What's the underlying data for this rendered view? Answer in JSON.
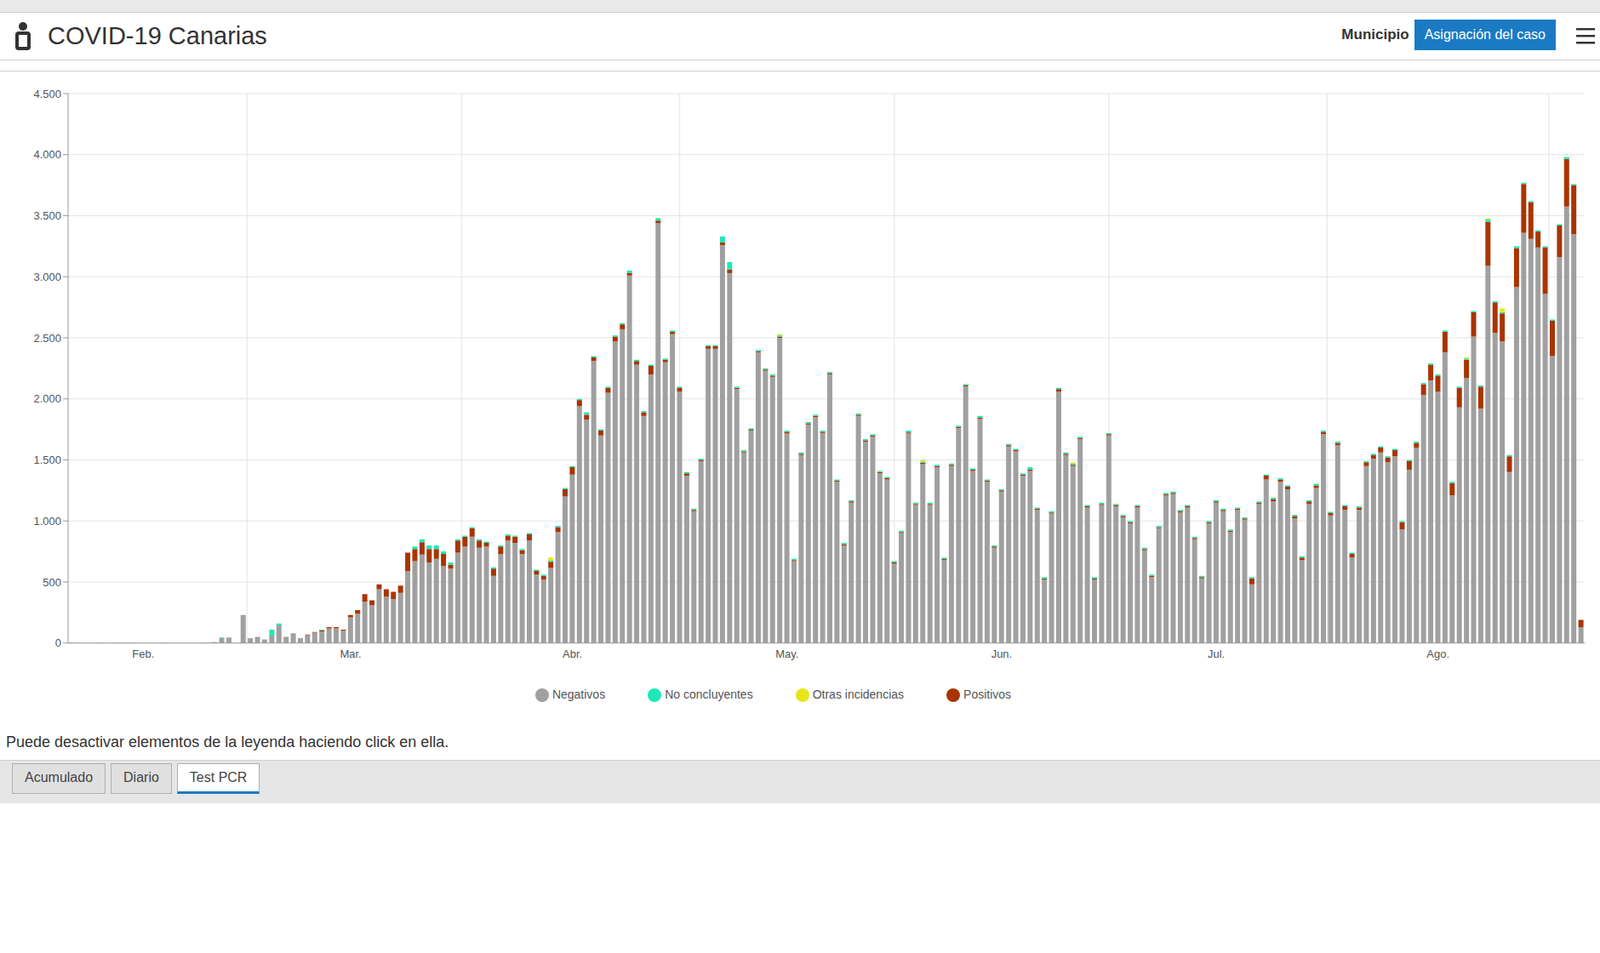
{
  "header": {
    "title": "COVID-19 Canarias",
    "link": "Municipio",
    "button": "Asignación del caso"
  },
  "note": "Puede desactivar elementos de la leyenda haciendo click en ella.",
  "tabs": [
    {
      "label": "Acumulado"
    },
    {
      "label": "Diario"
    },
    {
      "label": "Test PCR",
      "selected": true
    }
  ],
  "chart_data": {
    "type": "bar",
    "stacked": true,
    "grid": true,
    "legend": "bottom",
    "categories": [
      null,
      null,
      null,
      null,
      null,
      null,
      null,
      null,
      null,
      null,
      "Feb.",
      null,
      null,
      null,
      null,
      null,
      null,
      null,
      null,
      null,
      null,
      null,
      null,
      null,
      null,
      null,
      null,
      null,
      null,
      null,
      null,
      null,
      null,
      null,
      null,
      null,
      null,
      null,
      null,
      "Mar.",
      null,
      null,
      null,
      null,
      null,
      null,
      null,
      null,
      null,
      null,
      null,
      null,
      null,
      null,
      null,
      null,
      null,
      null,
      null,
      null,
      null,
      null,
      null,
      null,
      null,
      null,
      null,
      null,
      null,
      null,
      "Abr.",
      null,
      null,
      null,
      null,
      null,
      null,
      null,
      null,
      null,
      null,
      null,
      null,
      null,
      null,
      null,
      null,
      null,
      null,
      null,
      null,
      null,
      null,
      null,
      null,
      null,
      null,
      null,
      null,
      null,
      "May.",
      null,
      null,
      null,
      null,
      null,
      null,
      null,
      null,
      null,
      null,
      null,
      null,
      null,
      null,
      null,
      null,
      null,
      null,
      null,
      null,
      null,
      null,
      null,
      null,
      null,
      null,
      null,
      null,
      null,
      "Jun.",
      null,
      null,
      null,
      null,
      null,
      null,
      null,
      null,
      null,
      null,
      null,
      null,
      null,
      null,
      null,
      null,
      null,
      null,
      null,
      null,
      null,
      null,
      null,
      null,
      null,
      null,
      null,
      null,
      null,
      "Jul.",
      null,
      null,
      null,
      null,
      null,
      null,
      null,
      null,
      null,
      null,
      null,
      null,
      null,
      null,
      null,
      null,
      null,
      null,
      null,
      null,
      null,
      null,
      null,
      null,
      null,
      null,
      null,
      null,
      null,
      null,
      "Ago.",
      null,
      null,
      null,
      null,
      null,
      null,
      null,
      null,
      null,
      null,
      null,
      null,
      null,
      null,
      null,
      null,
      null,
      null,
      null,
      null
    ],
    "ylim": [
      0,
      4500
    ],
    "yticks": [
      0,
      500,
      {
        "value": 1000,
        "label": "1.000"
      },
      {
        "value": 1500,
        "label": "1.500"
      },
      {
        "value": 2000,
        "label": "2.000"
      },
      {
        "value": 2500,
        "label": "2.500"
      },
      {
        "value": 3000,
        "label": "3.000"
      },
      {
        "value": 3500,
        "label": "3.500"
      },
      {
        "value": 4000,
        "label": "4.000"
      },
      {
        "value": 4500,
        "label": "4.500"
      }
    ],
    "series": [
      {
        "name": "Negativos",
        "color": "#a0a0a0",
        "values": [
          5,
          0,
          0,
          0,
          3,
          0,
          3,
          3,
          5,
          0,
          0,
          0,
          0,
          3,
          0,
          0,
          0,
          0,
          0,
          5,
          8,
          40,
          45,
          0,
          230,
          40,
          50,
          30,
          60,
          145,
          50,
          80,
          40,
          65,
          85,
          95,
          120,
          120,
          100,
          210,
          240,
          340,
          310,
          440,
          380,
          360,
          410,
          590,
          670,
          725,
          660,
          690,
          630,
          610,
          740,
          790,
          870,
          780,
          790,
          550,
          730,
          840,
          820,
          730,
          840,
          560,
          520,
          615,
          910,
          1200,
          1380,
          1940,
          1830,
          2310,
          1700,
          2050,
          2470,
          2570,
          3010,
          2280,
          1860,
          2200,
          3440,
          2300,
          2530,
          2060,
          1370,
          1080,
          1490,
          2410,
          2410,
          3260,
          3030,
          2080,
          1560,
          1740,
          2380,
          2230,
          2180,
          2500,
          1715,
          670,
          1540,
          1790,
          1850,
          1720,
          2200,
          1320,
          800,
          1150,
          1860,
          1650,
          1690,
          1390,
          1340,
          650,
          900,
          1715,
          1130,
          1465,
          1130,
          1440,
          680,
          1450,
          1760,
          2100,
          1410,
          1835,
          1320,
          780,
          1240,
          1610,
          1570,
          1370,
          1410,
          1090,
          520,
          1060,
          2060,
          1540,
          1450,
          1670,
          1110,
          520,
          1130,
          1700,
          1120,
          1030,
          980,
          1110,
          760,
          540,
          940,
          1210,
          1220,
          1070,
          1110,
          850,
          530,
          980,
          1150,
          1080,
          910,
          1090,
          1010,
          480,
          1140,
          1340,
          1160,
          1320,
          1260,
          1020,
          680,
          1140,
          1270,
          1710,
          1045,
          1620,
          1090,
          700,
          1090,
          1450,
          1510,
          1560,
          1480,
          1530,
          930,
          1420,
          1600,
          2030,
          2150,
          2060,
          2380,
          1210,
          1930,
          2170,
          2510,
          1920,
          3090,
          2540,
          2470,
          1400,
          2915,
          3360,
          3310,
          3240,
          2860,
          2350,
          3160,
          3575,
          3350,
          130
        ]
      },
      {
        "name": "Positivos",
        "color": "#a93400",
        "values": [
          0,
          0,
          0,
          0,
          0,
          0,
          0,
          0,
          0,
          0,
          0,
          0,
          0,
          0,
          0,
          0,
          0,
          0,
          0,
          0,
          0,
          0,
          0,
          0,
          0,
          0,
          0,
          0,
          0,
          0,
          0,
          0,
          0,
          5,
          5,
          10,
          10,
          10,
          10,
          20,
          30,
          60,
          40,
          40,
          60,
          60,
          60,
          150,
          100,
          100,
          110,
          80,
          100,
          30,
          100,
          80,
          70,
          60,
          30,
          60,
          60,
          40,
          50,
          30,
          50,
          30,
          30,
          50,
          40,
          60,
          60,
          50,
          40,
          30,
          40,
          40,
          40,
          40,
          20,
          30,
          30,
          70,
          20,
          20,
          20,
          30,
          20,
          10,
          10,
          20,
          20,
          20,
          30,
          10,
          10,
          10,
          10,
          10,
          10,
          10,
          15,
          10,
          10,
          10,
          10,
          10,
          10,
          10,
          10,
          10,
          10,
          10,
          10,
          10,
          10,
          10,
          10,
          10,
          10,
          10,
          10,
          10,
          10,
          10,
          10,
          10,
          10,
          10,
          10,
          10,
          10,
          10,
          10,
          10,
          10,
          10,
          10,
          10,
          20,
          10,
          10,
          10,
          10,
          10,
          10,
          10,
          10,
          10,
          10,
          10,
          10,
          10,
          10,
          10,
          10,
          10,
          10,
          10,
          10,
          10,
          10,
          10,
          10,
          10,
          10,
          50,
          10,
          30,
          20,
          20,
          20,
          20,
          20,
          20,
          20,
          20,
          20,
          20,
          30,
          30,
          20,
          30,
          30,
          40,
          40,
          50,
          60,
          70,
          40,
          90,
          130,
          130,
          170,
          100,
          160,
          150,
          200,
          180,
          360,
          250,
          230,
          130,
          320,
          400,
          300,
          130,
          380,
          290,
          260,
          390,
          400,
          60
        ]
      },
      {
        "name": "No concluyentes",
        "color": "#1de9b6",
        "values": [
          0,
          0,
          0,
          0,
          0,
          0,
          0,
          0,
          0,
          0,
          0,
          0,
          0,
          0,
          0,
          0,
          0,
          0,
          0,
          0,
          0,
          5,
          0,
          0,
          0,
          0,
          0,
          0,
          50,
          15,
          0,
          0,
          0,
          0,
          0,
          5,
          0,
          0,
          0,
          0,
          0,
          0,
          0,
          0,
          0,
          0,
          0,
          0,
          20,
          25,
          30,
          30,
          20,
          20,
          10,
          10,
          10,
          10,
          10,
          10,
          10,
          10,
          10,
          10,
          10,
          10,
          10,
          10,
          10,
          10,
          10,
          10,
          20,
          10,
          10,
          10,
          10,
          10,
          20,
          10,
          10,
          10,
          20,
          10,
          10,
          10,
          10,
          10,
          10,
          10,
          10,
          50,
          60,
          10,
          10,
          10,
          10,
          10,
          10,
          10,
          10,
          10,
          10,
          10,
          10,
          10,
          10,
          10,
          10,
          10,
          10,
          10,
          10,
          10,
          10,
          10,
          10,
          15,
          10,
          10,
          10,
          10,
          10,
          10,
          10,
          10,
          10,
          15,
          10,
          10,
          10,
          10,
          10,
          10,
          20,
          10,
          10,
          10,
          10,
          10,
          10,
          10,
          10,
          10,
          10,
          10,
          10,
          10,
          10,
          10,
          10,
          10,
          10,
          10,
          10,
          10,
          10,
          10,
          10,
          10,
          10,
          10,
          10,
          10,
          10,
          10,
          10,
          10,
          10,
          10,
          10,
          10,
          10,
          10,
          15,
          10,
          10,
          10,
          10,
          10,
          10,
          10,
          10,
          10,
          10,
          10,
          10,
          10,
          10,
          10,
          10,
          10,
          10,
          10,
          10,
          10,
          10,
          10,
          20,
          10,
          10,
          10,
          15,
          10,
          10,
          10,
          10,
          10,
          10,
          15,
          10,
          0
        ]
      },
      {
        "name": "Otras incidencias",
        "color": "#e6e619",
        "values": [
          0,
          0,
          0,
          0,
          0,
          0,
          0,
          0,
          0,
          0,
          0,
          0,
          0,
          0,
          0,
          0,
          0,
          0,
          0,
          0,
          0,
          0,
          0,
          0,
          0,
          0,
          0,
          0,
          0,
          0,
          0,
          0,
          0,
          0,
          0,
          0,
          0,
          0,
          0,
          0,
          0,
          0,
          0,
          0,
          0,
          0,
          0,
          0,
          0,
          0,
          0,
          0,
          0,
          0,
          0,
          0,
          0,
          0,
          0,
          0,
          0,
          0,
          0,
          0,
          0,
          0,
          0,
          25,
          0,
          0,
          0,
          0,
          0,
          0,
          0,
          0,
          0,
          0,
          0,
          0,
          0,
          0,
          0,
          0,
          0,
          0,
          0,
          0,
          0,
          0,
          0,
          0,
          0,
          0,
          0,
          0,
          0,
          0,
          0,
          10,
          0,
          0,
          0,
          0,
          0,
          0,
          0,
          0,
          0,
          0,
          0,
          0,
          0,
          0,
          0,
          0,
          0,
          0,
          0,
          15,
          0,
          0,
          0,
          0,
          0,
          0,
          0,
          0,
          0,
          0,
          0,
          0,
          0,
          0,
          0,
          0,
          0,
          0,
          0,
          0,
          10,
          0,
          0,
          0,
          0,
          0,
          0,
          0,
          0,
          0,
          0,
          0,
          0,
          0,
          0,
          0,
          0,
          0,
          0,
          0,
          0,
          0,
          0,
          0,
          0,
          0,
          0,
          0,
          0,
          0,
          0,
          0,
          0,
          0,
          0,
          0,
          0,
          0,
          0,
          0,
          0,
          0,
          0,
          0,
          0,
          0,
          0,
          0,
          0,
          0,
          0,
          0,
          0,
          0,
          0,
          10,
          0,
          0,
          10,
          0,
          30,
          0,
          0,
          0,
          0,
          0,
          0,
          0,
          0,
          0,
          0,
          0
        ]
      }
    ]
  }
}
